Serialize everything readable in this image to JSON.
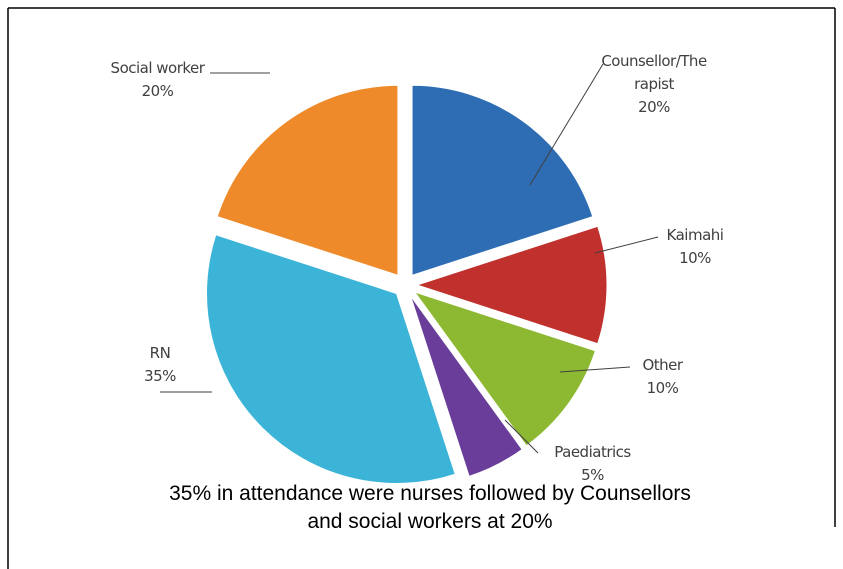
{
  "chart_data": {
    "type": "pie",
    "categories": [
      "Counsellor/Therapist",
      "Kaimahi",
      "Other",
      "Paediatrics",
      "RN",
      "Social worker"
    ],
    "values": [
      20,
      10,
      10,
      5,
      35,
      20
    ],
    "value_labels": [
      "20%",
      "10%",
      "10%",
      "5%",
      "35%",
      "20%"
    ],
    "colors": [
      "#2e6db4",
      "#c0302c",
      "#8db832",
      "#6a3d9a",
      "#3cb4d8",
      "#ef8a2a"
    ],
    "caption": "35% in attendance were nurses followed by Counsellors and social workers at 20%"
  }
}
